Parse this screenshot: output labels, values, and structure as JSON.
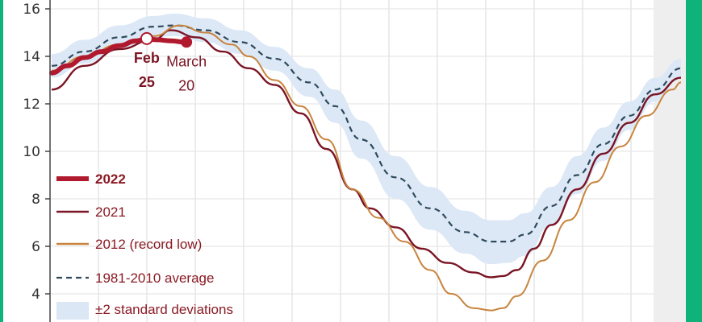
{
  "colors": {
    "c2022": "#b0192e",
    "c2021": "#7a1424",
    "c2012": "#c8843e",
    "average": "#2e4a5c",
    "band": "#dbe7f5",
    "grid": "#e6e6e6",
    "right_shade": "#eeeeee",
    "page_border": "#0fb37a"
  },
  "chart_data": {
    "type": "line",
    "x_domain": [
      1,
      365
    ],
    "ylim": [
      3,
      16
    ],
    "y_ticks": [
      {
        "value": 16,
        "label": "16"
      },
      {
        "value": 14,
        "label": "14"
      },
      {
        "value": 12,
        "label": "12"
      },
      {
        "value": 10,
        "label": "10"
      },
      {
        "value": 8,
        "label": "8"
      },
      {
        "value": 6,
        "label": "6"
      },
      {
        "value": 4,
        "label": "4"
      }
    ],
    "series": [
      {
        "key": "average",
        "name": "1981-2010 average",
        "style": "dashed",
        "points": [
          [
            1,
            13.6
          ],
          [
            20,
            14.2
          ],
          [
            40,
            14.8
          ],
          [
            60,
            15.25
          ],
          [
            72,
            15.3
          ],
          [
            90,
            15.1
          ],
          [
            110,
            14.6
          ],
          [
            130,
            13.9
          ],
          [
            150,
            12.9
          ],
          [
            165,
            11.9
          ],
          [
            180,
            10.5
          ],
          [
            200,
            8.9
          ],
          [
            220,
            7.6
          ],
          [
            240,
            6.6
          ],
          [
            255,
            6.2
          ],
          [
            265,
            6.2
          ],
          [
            275,
            6.5
          ],
          [
            290,
            7.7
          ],
          [
            305,
            9.0
          ],
          [
            320,
            10.3
          ],
          [
            335,
            11.5
          ],
          [
            350,
            12.6
          ],
          [
            365,
            13.5
          ]
        ]
      },
      {
        "key": "2021",
        "name": "2021",
        "style": "solid",
        "points": [
          [
            1,
            12.6
          ],
          [
            20,
            13.6
          ],
          [
            40,
            14.3
          ],
          [
            60,
            14.7
          ],
          [
            70,
            15.1
          ],
          [
            85,
            14.8
          ],
          [
            100,
            14.2
          ],
          [
            115,
            13.5
          ],
          [
            130,
            12.8
          ],
          [
            145,
            11.6
          ],
          [
            160,
            10.1
          ],
          [
            175,
            8.4
          ],
          [
            185,
            7.6
          ],
          [
            200,
            6.8
          ],
          [
            215,
            5.9
          ],
          [
            230,
            5.3
          ],
          [
            245,
            4.9
          ],
          [
            255,
            4.7
          ],
          [
            262,
            4.75
          ],
          [
            270,
            5.0
          ],
          [
            280,
            5.9
          ],
          [
            290,
            6.9
          ],
          [
            305,
            8.4
          ],
          [
            320,
            9.9
          ],
          [
            335,
            11.2
          ],
          [
            350,
            12.4
          ],
          [
            365,
            13.1
          ]
        ]
      },
      {
        "key": "2012",
        "name": "2012 (record low)",
        "style": "solid",
        "points": [
          [
            1,
            13.4
          ],
          [
            20,
            14.0
          ],
          [
            40,
            14.5
          ],
          [
            60,
            14.85
          ],
          [
            75,
            15.3
          ],
          [
            90,
            15.0
          ],
          [
            105,
            14.5
          ],
          [
            115,
            14.0
          ],
          [
            130,
            13.0
          ],
          [
            145,
            11.9
          ],
          [
            160,
            10.5
          ],
          [
            175,
            8.4
          ],
          [
            190,
            7.2
          ],
          [
            205,
            6.2
          ],
          [
            220,
            5.0
          ],
          [
            232,
            4.0
          ],
          [
            245,
            3.4
          ],
          [
            255,
            3.3
          ],
          [
            262,
            3.4
          ],
          [
            270,
            3.9
          ],
          [
            285,
            5.4
          ],
          [
            300,
            7.1
          ],
          [
            315,
            8.7
          ],
          [
            330,
            10.2
          ],
          [
            345,
            11.5
          ],
          [
            360,
            12.6
          ],
          [
            365,
            12.9
          ]
        ]
      },
      {
        "key": "2022",
        "name": "2022",
        "style": "bold",
        "points": [
          [
            1,
            13.3
          ],
          [
            10,
            13.6
          ],
          [
            20,
            13.95
          ],
          [
            30,
            14.2
          ],
          [
            40,
            14.45
          ],
          [
            50,
            14.65
          ],
          [
            56,
            14.75
          ],
          [
            62,
            14.7
          ],
          [
            70,
            14.65
          ],
          [
            78,
            14.6
          ]
        ]
      }
    ],
    "band": {
      "name": "±2 standard deviations",
      "upper": [
        [
          1,
          14.1
        ],
        [
          20,
          14.7
        ],
        [
          40,
          15.3
        ],
        [
          60,
          15.7
        ],
        [
          72,
          15.8
        ],
        [
          90,
          15.6
        ],
        [
          110,
          15.1
        ],
        [
          130,
          14.4
        ],
        [
          150,
          13.5
        ],
        [
          165,
          12.6
        ],
        [
          180,
          11.3
        ],
        [
          200,
          9.8
        ],
        [
          220,
          8.5
        ],
        [
          240,
          7.5
        ],
        [
          255,
          7.1
        ],
        [
          265,
          7.1
        ],
        [
          275,
          7.4
        ],
        [
          290,
          8.5
        ],
        [
          305,
          9.8
        ],
        [
          320,
          11.0
        ],
        [
          335,
          12.1
        ],
        [
          350,
          13.1
        ],
        [
          365,
          13.9
        ]
      ],
      "lower": [
        [
          1,
          13.1
        ],
        [
          20,
          13.7
        ],
        [
          40,
          14.3
        ],
        [
          60,
          14.8
        ],
        [
          72,
          14.85
        ],
        [
          90,
          14.6
        ],
        [
          110,
          14.1
        ],
        [
          130,
          13.4
        ],
        [
          150,
          12.3
        ],
        [
          165,
          11.2
        ],
        [
          180,
          9.7
        ],
        [
          200,
          8.0
        ],
        [
          220,
          6.7
        ],
        [
          240,
          5.7
        ],
        [
          255,
          5.25
        ],
        [
          265,
          5.3
        ],
        [
          275,
          5.6
        ],
        [
          290,
          6.9
        ],
        [
          305,
          8.2
        ],
        [
          320,
          9.6
        ],
        [
          335,
          10.9
        ],
        [
          350,
          12.1
        ],
        [
          365,
          13.1
        ]
      ]
    },
    "markers": [
      {
        "key": "feb25",
        "x": 56,
        "y": 14.75,
        "label_line1": "Feb",
        "label_line2": "25",
        "fill": "open"
      },
      {
        "key": "march20",
        "x": 79,
        "y": 14.6,
        "label_line1": "March",
        "label_line2": "20",
        "fill": "solid"
      }
    ],
    "legend": {
      "position": "bottom-left",
      "items": [
        {
          "key": "2022",
          "label": "2022",
          "style": "bold"
        },
        {
          "key": "2021",
          "label": "2021",
          "style": "solid"
        },
        {
          "key": "2012",
          "label": "2012 (record low)",
          "style": "solid"
        },
        {
          "key": "average",
          "label": "1981-2010 average",
          "style": "dashed"
        },
        {
          "key": "band",
          "label": "±2 standard deviations",
          "style": "band"
        }
      ]
    },
    "grid": true
  }
}
